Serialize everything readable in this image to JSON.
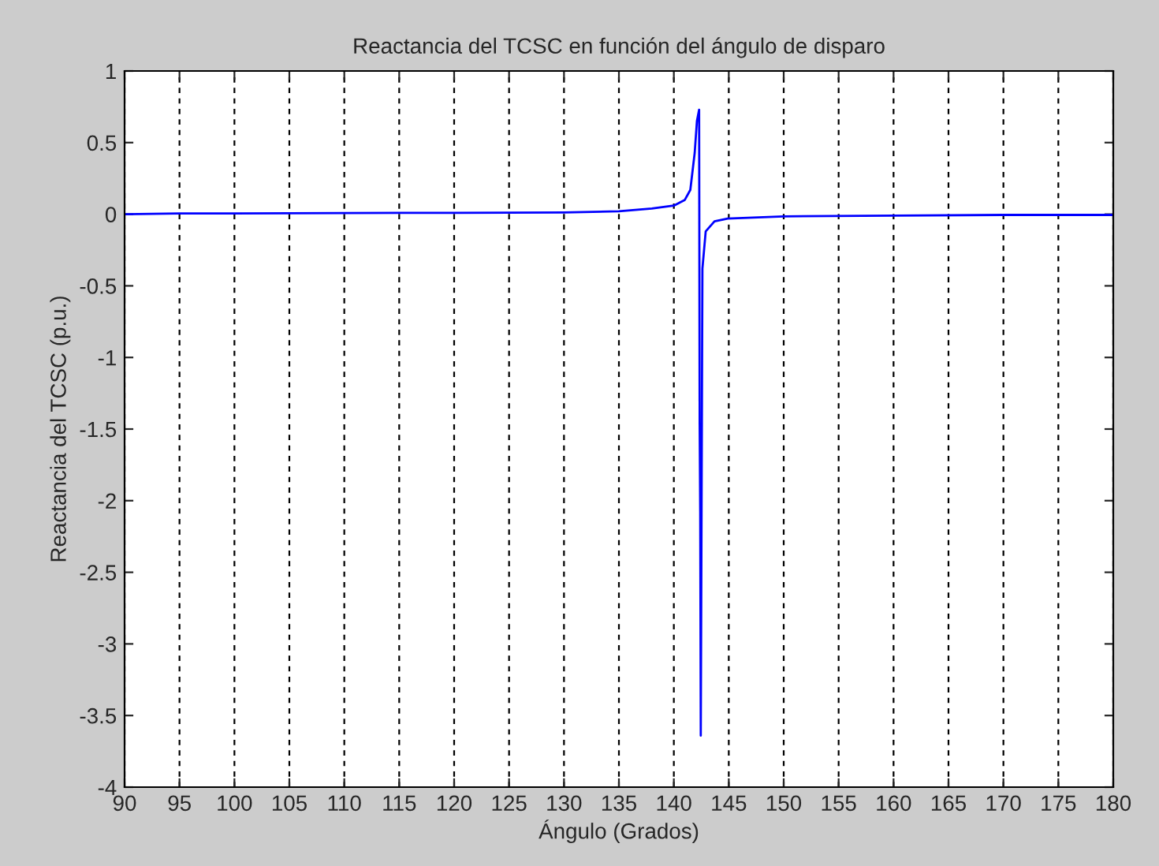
{
  "chart_data": {
    "type": "line",
    "title": "Reactancia del TCSC en función del ángulo de disparo",
    "xlabel": "Ángulo (Grados)",
    "ylabel": "Reactancia del TCSC (p.u.)",
    "series": [
      {
        "color": "#0000ff",
        "x": [
          90,
          95,
          100,
          110,
          120,
          130,
          135,
          138,
          140,
          141,
          141.5,
          141.9,
          142.1,
          142.3,
          142.35,
          142.4,
          142.45,
          142.6,
          142.9,
          143.7,
          144.9,
          150,
          160,
          170,
          180
        ],
        "values": [
          0.0,
          0.005,
          0.005,
          0.008,
          0.01,
          0.012,
          0.02,
          0.04,
          0.06,
          0.1,
          0.17,
          0.43,
          0.65,
          0.73,
          -1.46,
          -2.08,
          -3.64,
          -0.38,
          -0.12,
          -0.05,
          -0.03,
          -0.015,
          -0.01,
          -0.005,
          -0.005
        ]
      }
    ],
    "xlim": [
      90,
      180
    ],
    "xticks": [
      90,
      95,
      100,
      105,
      110,
      115,
      120,
      125,
      130,
      135,
      140,
      145,
      150,
      155,
      160,
      165,
      170,
      175,
      180
    ],
    "ylim": [
      -4,
      1
    ],
    "yticks": [
      -4,
      -3.5,
      -3,
      -2.5,
      -2,
      -1.5,
      -1,
      -0.5,
      0,
      0.5,
      1
    ],
    "grid": "x",
    "line_style": "solid"
  }
}
